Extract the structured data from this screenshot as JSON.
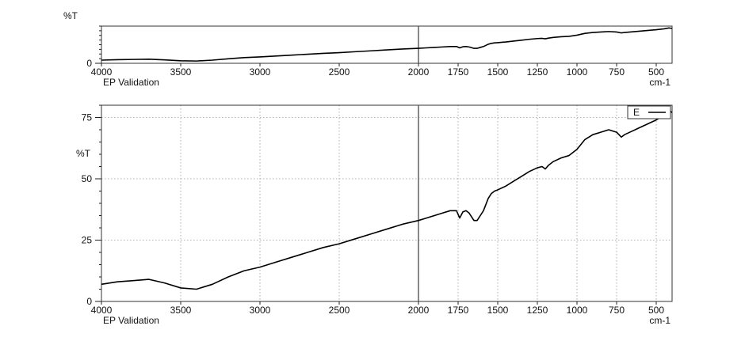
{
  "colors": {
    "trace": "#000000",
    "frame": "#333333",
    "grid": "#9a9a9a",
    "cursor": "#555555"
  },
  "chart_data": [
    {
      "type": "line",
      "panel": "overview",
      "title": "",
      "ylabel": "%T",
      "xlabel": "cm-1",
      "x_caption": "EP Validation",
      "xlim": [
        4000,
        400
      ],
      "ylim": [
        0,
        82
      ],
      "x_reversed": true,
      "grid": false,
      "x_ticks": [
        4000,
        3500,
        3000,
        2500,
        2000,
        1750,
        1500,
        1250,
        1000,
        750,
        500
      ],
      "y_ticks": [
        0
      ],
      "cursor_x": 2000,
      "series": [
        {
          "x": [
            4000,
            3900,
            3800,
            3700,
            3600,
            3500,
            3400,
            3300,
            3200,
            3100,
            3000,
            2900,
            2800,
            2700,
            2600,
            2500,
            2400,
            2300,
            2200,
            2100,
            2000,
            1950,
            1900,
            1850,
            1800,
            1760,
            1740,
            1720,
            1700,
            1680,
            1650,
            1630,
            1610,
            1590,
            1560,
            1540,
            1520,
            1500,
            1450,
            1400,
            1350,
            1300,
            1250,
            1220,
            1200,
            1180,
            1150,
            1100,
            1050,
            1000,
            950,
            900,
            850,
            800,
            750,
            720,
            700,
            650,
            600,
            550,
            500,
            450,
            420,
            400
          ],
          "y": [
            7,
            8,
            8.5,
            9,
            7.5,
            5.5,
            5,
            7,
            10,
            12.5,
            14,
            16,
            18,
            20,
            22,
            23.5,
            25.5,
            27.5,
            29.5,
            31.5,
            33,
            34,
            35,
            36,
            37,
            37,
            34,
            36.5,
            37,
            36,
            33,
            33,
            35,
            37,
            42,
            44,
            45,
            45.5,
            47,
            49,
            51,
            53,
            54.5,
            55,
            54,
            55.5,
            57,
            58.5,
            59.5,
            62,
            66,
            68,
            69,
            70,
            69,
            67,
            68,
            69.5,
            71,
            72.5,
            74,
            76,
            78,
            77
          ]
        }
      ]
    },
    {
      "type": "line",
      "panel": "main",
      "title": "",
      "ylabel": "%T",
      "xlabel": "cm-1",
      "x_caption": "EP Validation",
      "xlim": [
        4000,
        400
      ],
      "ylim": [
        0,
        80
      ],
      "x_reversed": true,
      "grid": true,
      "legend": {
        "position": "top-right",
        "entries": [
          "E"
        ]
      },
      "x_ticks": [
        4000,
        3500,
        3000,
        2500,
        2000,
        1750,
        1500,
        1250,
        1000,
        750,
        500
      ],
      "y_ticks": [
        0,
        25,
        50,
        75
      ],
      "cursor_x": 2000,
      "series": [
        {
          "name": "E",
          "x": [
            4000,
            3900,
            3800,
            3700,
            3600,
            3500,
            3400,
            3300,
            3200,
            3100,
            3000,
            2900,
            2800,
            2700,
            2600,
            2500,
            2400,
            2300,
            2200,
            2100,
            2000,
            1950,
            1900,
            1850,
            1800,
            1760,
            1740,
            1720,
            1700,
            1680,
            1650,
            1630,
            1610,
            1590,
            1560,
            1540,
            1520,
            1500,
            1450,
            1400,
            1350,
            1300,
            1250,
            1220,
            1200,
            1180,
            1150,
            1100,
            1050,
            1000,
            950,
            900,
            850,
            800,
            750,
            720,
            700,
            650,
            600,
            550,
            500,
            450,
            420,
            400
          ],
          "y": [
            7,
            8,
            8.5,
            9,
            7.5,
            5.5,
            5,
            7,
            10,
            12.5,
            14,
            16,
            18,
            20,
            22,
            23.5,
            25.5,
            27.5,
            29.5,
            31.5,
            33,
            34,
            35,
            36,
            37,
            37,
            34,
            36.5,
            37,
            36,
            33,
            33,
            35,
            37,
            42,
            44,
            45,
            45.5,
            47,
            49,
            51,
            53,
            54.5,
            55,
            54,
            55.5,
            57,
            58.5,
            59.5,
            62,
            66,
            68,
            69,
            70,
            69,
            67,
            68,
            69.5,
            71,
            72.5,
            74,
            76,
            78,
            77
          ]
        }
      ]
    }
  ]
}
